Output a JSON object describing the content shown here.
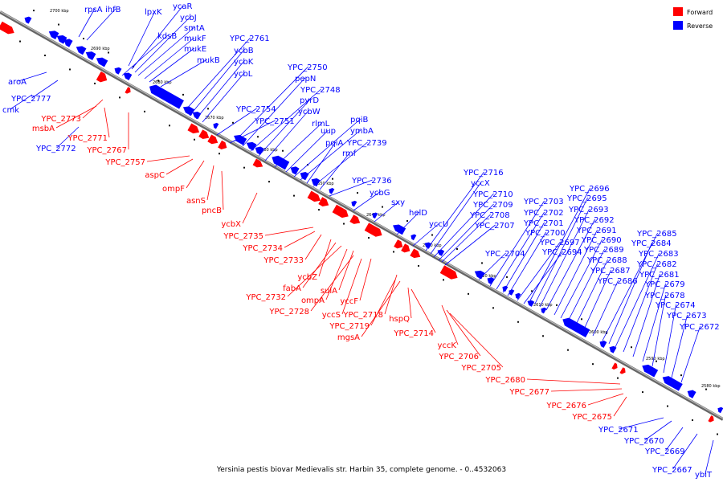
{
  "caption": "Yersinia pestis biovar Medievalis str. Harbin 35, complete genome. - 0..4532063",
  "legend": [
    {
      "label": "Forward",
      "color": "#ff0000"
    },
    {
      "label": "Reverse",
      "color": "#0000ff"
    }
  ],
  "colors": {
    "forward": "#ff0000",
    "reverse": "#0000ff",
    "backbone": "#888888"
  },
  "ticks": [
    "2700 kbp",
    "2690 kbp",
    "2680 kbp",
    "2670 kbp",
    "2660 kbp",
    "2650 kbp",
    "2640 kbp",
    "2630 kbp",
    "2620 kbp",
    "2610 kbp",
    "2600 kbp",
    "2590 kbp",
    "2580 kbp"
  ],
  "forward_labels": [
    "YPC_2773",
    "msbA",
    "YPC_2771",
    "YPC_2767",
    "YPC_2757",
    "aspC",
    "ompF",
    "asnS",
    "pncB",
    "ycbX",
    "YPC_2735",
    "YPC_2734",
    "YPC_2733",
    "ycbZ",
    "fabA",
    "YPC_2732",
    "ompA",
    "sulA",
    "YPC_2728",
    "yccS",
    "yccF",
    "YPC_2718",
    "YPC_2719",
    "mgsA",
    "hspQ",
    "YPC_2714",
    "yccK",
    "YPC_2706",
    "YPC_2705",
    "YPC_2680",
    "YPC_2677",
    "YPC_2676",
    "YPC_2675"
  ],
  "reverse_labels": [
    "rpsA",
    "ihfB",
    "lpxK",
    "ycaR",
    "ycbJ",
    "kdsB",
    "smtA",
    "mukF",
    "mukE",
    "mukB",
    "YPC_2761",
    "ycbB",
    "ycbK",
    "ycbL",
    "aroA",
    "YPC_2777",
    "cmk",
    "YPC_2772",
    "YPC_2750",
    "pepN",
    "YPC_2748",
    "pyrD",
    "ycbW",
    "YPC_2754",
    "YPC_2751",
    "rlmL",
    "uup",
    "pqiB",
    "ymbA",
    "pqiA",
    "YPC_2739",
    "rmf",
    "YPC_2736",
    "ycbG",
    "sxy",
    "helD",
    "yccU",
    "YPC_2716",
    "yccX",
    "YPC_2710",
    "YPC_2709",
    "YPC_2708",
    "YPC_2707",
    "YPC_2704",
    "YPC_2703",
    "YPC_2702",
    "YPC_2701",
    "YPC_2700",
    "YPC_2697",
    "YPC_2694",
    "YPC_2696",
    "YPC_2695",
    "YPC_2693",
    "YPC_2692",
    "YPC_2691",
    "YPC_2690",
    "YPC_2689",
    "YPC_2688",
    "YPC_2687",
    "YPC_2686",
    "YPC_2685",
    "YPC_2684",
    "YPC_2683",
    "YPC_2682",
    "YPC_2681",
    "YPC_2679",
    "YPC_2678",
    "YPC_2674",
    "YPC_2673",
    "YPC_2672",
    "YPC_2671",
    "YPC_2670",
    "YPC_2669",
    "YPC_2667",
    "ybiT"
  ]
}
